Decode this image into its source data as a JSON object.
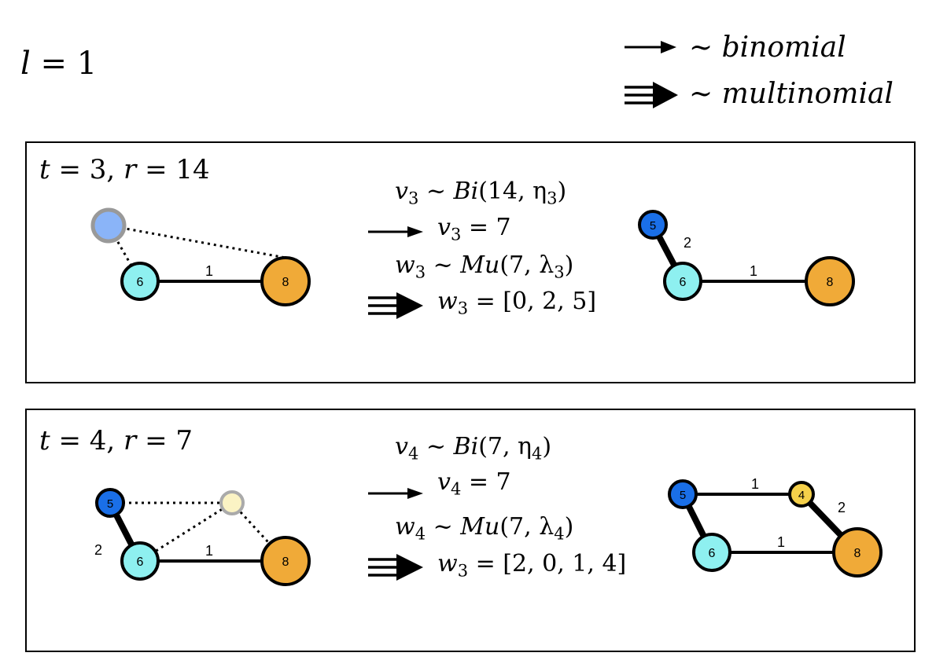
{
  "header": {
    "l_var": "l",
    "l_value": "1",
    "legend": {
      "binomial_label": "binomial",
      "multinomial_label": "multinomial",
      "tilde": "~"
    }
  },
  "panels": [
    {
      "t": "3",
      "r": "14",
      "v_sub": "3",
      "bi_args": "(14, η",
      "v_value": "7",
      "w_sub": "3",
      "mu_args": "(7, λ",
      "w_value": "[0, 2, 5]",
      "before_nodes": {
        "n6": "6",
        "n8": "8"
      },
      "before_edges": {
        "e68": "1"
      },
      "after_nodes": {
        "n5": "5",
        "n6": "6",
        "n8": "8"
      },
      "after_edges": {
        "e56": "2",
        "e68": "1"
      }
    },
    {
      "t": "4",
      "r": "7",
      "v_sub": "4",
      "bi_args": "(7, η",
      "v_value": "7",
      "w_sub": "4",
      "w_result_sub": "3",
      "mu_args": "(7, λ",
      "w_value": "[2, 0, 1, 4]",
      "before_nodes": {
        "n5": "5",
        "n6": "6",
        "n8": "8"
      },
      "before_edges": {
        "e56": "2",
        "e68": "1"
      },
      "after_nodes": {
        "n5": "5",
        "n4": "4",
        "n6": "6",
        "n8": "8"
      },
      "after_edges": {
        "e54": "1",
        "e48": "2",
        "e68": "1"
      }
    }
  ],
  "colors": {
    "light_blue_node": "#8ab4f8",
    "cyan_node": "#8ef0f0",
    "orange_node": "#f0aa38",
    "blue_node": "#1a6fe8",
    "yellow_node": "#f5d04a",
    "pale_node": "#fbf3c4"
  }
}
